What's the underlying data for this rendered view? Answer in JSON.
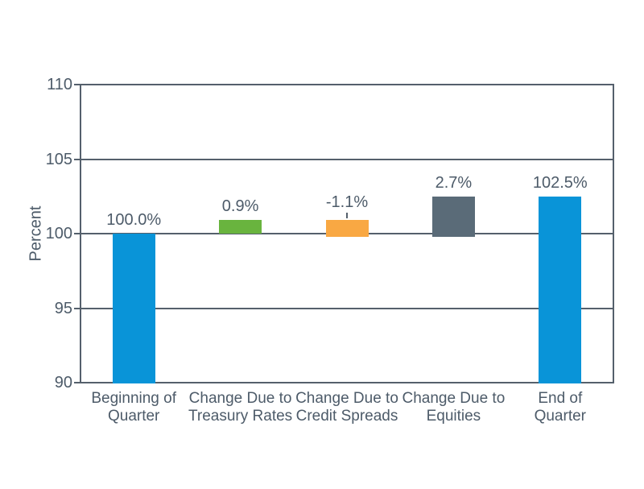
{
  "page": {
    "background_color": "#ffffff"
  },
  "chart_data": {
    "type": "bar",
    "subtype": "waterfall",
    "title": "",
    "xlabel": "",
    "ylabel": "Percent",
    "ylim": [
      90,
      110
    ],
    "yticks": [
      90,
      95,
      100,
      105,
      110
    ],
    "grid": true,
    "legend": false,
    "axis_color": "#55606C",
    "text_color": "#4D5B69",
    "categories": [
      [
        "Beginning of",
        "Quarter"
      ],
      [
        "Change Due to",
        "Treasury Rates"
      ],
      [
        "Change Due to",
        "Credit Spreads"
      ],
      [
        "Change Due to",
        "Equities"
      ],
      [
        "End of",
        "Quarter"
      ]
    ],
    "bars": [
      {
        "name": "beginning-of-quarter",
        "value": 100.0,
        "label": "100.0%",
        "start": 90,
        "end": 100.0,
        "color": "#0994D8",
        "color_name": "blue",
        "leader_line": false
      },
      {
        "name": "change-treasury-rates",
        "value": 0.9,
        "label": "0.9%",
        "start": 100.0,
        "end": 100.9,
        "color": "#69B43E",
        "color_name": "green",
        "leader_line": false
      },
      {
        "name": "change-credit-spreads",
        "value": -1.1,
        "label": "-1.1%",
        "start": 99.8,
        "end": 100.9,
        "color": "#F9A843",
        "color_name": "orange",
        "leader_line": true
      },
      {
        "name": "change-equities",
        "value": 2.7,
        "label": "2.7%",
        "start": 99.8,
        "end": 102.5,
        "color": "#5A6B78",
        "color_name": "gray",
        "leader_line": false
      },
      {
        "name": "end-of-quarter",
        "value": 102.5,
        "label": "102.5%",
        "start": 90,
        "end": 102.5,
        "color": "#0994D8",
        "color_name": "blue",
        "leader_line": false
      }
    ]
  }
}
